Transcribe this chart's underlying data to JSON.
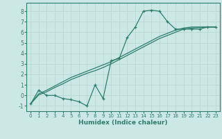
{
  "x": [
    0,
    1,
    2,
    3,
    4,
    5,
    6,
    7,
    8,
    9,
    10,
    11,
    12,
    13,
    14,
    15,
    16,
    17,
    18,
    19,
    20,
    21,
    22,
    23
  ],
  "y_main": [
    -0.8,
    0.5,
    0.0,
    0.0,
    -0.3,
    -0.4,
    -0.6,
    -1.0,
    1.0,
    -0.3,
    3.3,
    3.5,
    5.5,
    6.5,
    8.0,
    8.1,
    8.0,
    7.0,
    6.3,
    6.3,
    6.3,
    6.3,
    6.5,
    6.5
  ],
  "y_line1": [
    -0.8,
    0.15,
    0.5,
    0.9,
    1.3,
    1.7,
    2.0,
    2.3,
    2.6,
    2.9,
    3.2,
    3.6,
    4.0,
    4.4,
    4.8,
    5.2,
    5.6,
    5.9,
    6.2,
    6.4,
    6.5,
    6.5,
    6.5,
    6.5
  ],
  "y_line2": [
    -0.8,
    0.05,
    0.35,
    0.75,
    1.1,
    1.5,
    1.8,
    2.1,
    2.35,
    2.65,
    3.0,
    3.4,
    3.8,
    4.2,
    4.6,
    5.0,
    5.4,
    5.7,
    6.0,
    6.3,
    6.4,
    6.45,
    6.5,
    6.5
  ],
  "line_color": "#2e7d6d",
  "bg_color": "#cce8e4",
  "grid_color": "#b8d8d4",
  "xlabel": "Humidex (Indice chaleur)",
  "xlim": [
    -0.5,
    23.5
  ],
  "ylim": [
    -1.5,
    8.8
  ],
  "yticks": [
    -1,
    0,
    1,
    2,
    3,
    4,
    5,
    6,
    7,
    8
  ],
  "xticks": [
    0,
    1,
    2,
    3,
    4,
    5,
    6,
    7,
    8,
    9,
    10,
    11,
    12,
    13,
    14,
    15,
    16,
    17,
    18,
    19,
    20,
    21,
    22,
    23
  ]
}
